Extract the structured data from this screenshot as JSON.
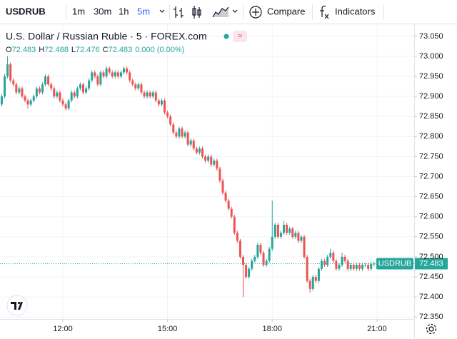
{
  "toolbar": {
    "symbol": "USDRUB",
    "intervals": [
      "1m",
      "30m",
      "1h",
      "5m"
    ],
    "active_interval": 3,
    "compare": "Compare",
    "indicators": "Indicators"
  },
  "legend": {
    "title": "U.S. Dollar / Russian Ruble · 5 · FOREX.com",
    "ohlc": [
      {
        "label": "O",
        "value": "72.483"
      },
      {
        "label": "H",
        "value": "72.488"
      },
      {
        "label": "L",
        "value": "72.476"
      },
      {
        "label": "C",
        "value": "72.483"
      }
    ],
    "change": "0.000 (0.00%)"
  },
  "chart_data": {
    "type": "candlestick",
    "up_color": "#26a69a",
    "down_color": "#ef5350",
    "grid": true,
    "last_price": {
      "label": "USDRUB",
      "value": 72.483
    },
    "xlim": [
      "10:12",
      "22:04"
    ],
    "xticks": [
      "12:00",
      "15:00",
      "18:00",
      "21:00"
    ],
    "ylim": [
      72.345,
      73.08
    ],
    "yticks": [
      {
        "value": 72.35,
        "label": "72.350"
      },
      {
        "value": 72.4,
        "label": "72.400"
      },
      {
        "value": 72.45,
        "label": "72.450"
      },
      {
        "value": 72.5,
        "label": "72.500"
      },
      {
        "value": 72.55,
        "label": "72.550"
      },
      {
        "value": 72.6,
        "label": "72.600"
      },
      {
        "value": 72.65,
        "label": "72.650"
      },
      {
        "value": 72.7,
        "label": "72.700"
      },
      {
        "value": 72.75,
        "label": "72.750"
      },
      {
        "value": 72.8,
        "label": "72.800"
      },
      {
        "value": 72.85,
        "label": "72.850"
      },
      {
        "value": 72.9,
        "label": "72.900"
      },
      {
        "value": 72.95,
        "label": "72.950"
      },
      {
        "value": 73.0,
        "label": "73.000"
      },
      {
        "value": 73.05,
        "label": "73.050"
      }
    ],
    "x": [
      "10:15",
      "10:20",
      "10:25",
      "10:30",
      "10:35",
      "10:40",
      "10:45",
      "10:50",
      "10:55",
      "11:00",
      "11:05",
      "11:10",
      "11:15",
      "11:20",
      "11:25",
      "11:30",
      "11:35",
      "11:40",
      "11:45",
      "11:50",
      "11:55",
      "12:00",
      "12:05",
      "12:10",
      "12:15",
      "12:20",
      "12:25",
      "12:30",
      "12:35",
      "12:40",
      "12:45",
      "12:50",
      "12:55",
      "13:00",
      "13:05",
      "13:10",
      "13:15",
      "13:20",
      "13:25",
      "13:30",
      "13:35",
      "13:40",
      "13:45",
      "13:50",
      "13:55",
      "14:00",
      "14:05",
      "14:10",
      "14:15",
      "14:20",
      "14:25",
      "14:30",
      "14:35",
      "14:40",
      "14:45",
      "14:50",
      "14:55",
      "15:00",
      "15:05",
      "15:10",
      "15:15",
      "15:20",
      "15:25",
      "15:30",
      "15:35",
      "15:40",
      "15:45",
      "15:50",
      "15:55",
      "16:00",
      "16:05",
      "16:10",
      "16:15",
      "16:20",
      "16:25",
      "16:30",
      "16:35",
      "16:40",
      "16:45",
      "16:50",
      "16:55",
      "17:00",
      "17:05",
      "17:10",
      "17:15",
      "17:20",
      "17:25",
      "17:30",
      "17:35",
      "17:40",
      "17:45",
      "17:50",
      "17:55",
      "18:00",
      "18:05",
      "18:10",
      "18:15",
      "18:20",
      "18:25",
      "18:30",
      "18:35",
      "18:40",
      "18:45",
      "18:50",
      "18:55",
      "19:00",
      "19:05",
      "19:10",
      "19:15",
      "19:20",
      "19:25",
      "19:30",
      "19:35",
      "19:40",
      "19:45",
      "19:50",
      "19:55",
      "20:00",
      "20:05",
      "20:10",
      "20:15",
      "20:20",
      "20:25",
      "20:30",
      "20:35",
      "20:40",
      "20:45",
      "20:50",
      "20:55"
    ],
    "open": [
      72.88,
      72.9,
      72.95,
      72.98,
      72.94,
      72.93,
      72.91,
      72.92,
      72.9,
      72.89,
      72.88,
      72.89,
      72.9,
      72.92,
      72.91,
      72.93,
      72.95,
      72.93,
      72.92,
      72.9,
      72.91,
      72.89,
      72.88,
      72.87,
      72.89,
      72.91,
      72.9,
      72.92,
      72.93,
      72.91,
      72.92,
      72.94,
      72.96,
      72.95,
      72.93,
      72.96,
      72.95,
      72.97,
      72.96,
      72.95,
      72.96,
      72.95,
      72.96,
      72.97,
      72.96,
      72.94,
      72.93,
      72.92,
      72.93,
      72.91,
      72.9,
      72.91,
      72.9,
      72.91,
      72.89,
      72.88,
      72.89,
      72.86,
      72.85,
      72.83,
      72.81,
      72.8,
      72.82,
      72.8,
      72.81,
      72.78,
      72.79,
      72.77,
      72.76,
      72.77,
      72.75,
      72.74,
      72.75,
      72.73,
      72.74,
      72.72,
      72.69,
      72.66,
      72.64,
      72.62,
      72.6,
      72.56,
      72.54,
      72.5,
      72.48,
      72.45,
      72.47,
      72.49,
      72.5,
      72.53,
      72.51,
      72.48,
      72.49,
      72.52,
      72.55,
      72.58,
      72.55,
      72.56,
      72.58,
      72.56,
      72.57,
      72.55,
      72.56,
      72.54,
      72.55,
      72.5,
      72.44,
      72.42,
      72.45,
      72.44,
      72.47,
      72.49,
      72.48,
      72.5,
      72.51,
      72.49,
      72.47,
      72.48,
      72.5,
      72.49,
      72.47,
      72.48,
      72.47,
      72.48,
      72.47,
      72.48,
      72.48,
      72.47,
      72.483
    ],
    "high": [
      72.905,
      72.955,
      73.0,
      72.985,
      72.945,
      72.935,
      72.925,
      72.925,
      72.905,
      72.895,
      72.895,
      72.905,
      72.925,
      72.925,
      72.935,
      72.955,
      72.955,
      72.935,
      72.925,
      72.915,
      72.915,
      72.895,
      72.885,
      72.895,
      72.915,
      72.915,
      72.925,
      72.935,
      72.935,
      72.925,
      72.945,
      72.965,
      72.965,
      72.955,
      72.965,
      72.965,
      72.975,
      72.975,
      72.965,
      72.965,
      72.965,
      72.965,
      72.975,
      72.975,
      72.965,
      72.945,
      72.935,
      72.935,
      72.935,
      72.915,
      72.915,
      72.915,
      72.915,
      72.915,
      72.895,
      72.895,
      72.895,
      72.865,
      72.855,
      72.835,
      72.815,
      72.825,
      72.825,
      72.815,
      72.815,
      72.795,
      72.795,
      72.775,
      72.775,
      72.775,
      72.755,
      72.755,
      72.755,
      72.745,
      72.745,
      72.725,
      72.695,
      72.665,
      72.645,
      72.625,
      72.605,
      72.565,
      72.545,
      72.505,
      72.485,
      72.475,
      72.495,
      72.505,
      72.535,
      72.535,
      72.515,
      72.495,
      72.525,
      72.64,
      72.585,
      72.585,
      72.565,
      72.59,
      72.585,
      72.575,
      72.575,
      72.565,
      72.565,
      72.555,
      72.555,
      72.505,
      72.445,
      72.455,
      72.455,
      72.475,
      72.495,
      72.495,
      72.505,
      72.52,
      72.515,
      72.495,
      72.485,
      72.51,
      72.505,
      72.495,
      72.485,
      72.485,
      72.485,
      72.485,
      72.485,
      72.485,
      72.485,
      72.488,
      72.488
    ],
    "low": [
      72.875,
      72.895,
      72.945,
      72.935,
      72.925,
      72.905,
      72.905,
      72.895,
      72.885,
      72.87,
      72.875,
      72.885,
      72.895,
      72.905,
      72.905,
      72.925,
      72.925,
      72.915,
      72.895,
      72.895,
      72.885,
      72.875,
      72.865,
      72.865,
      72.885,
      72.895,
      72.895,
      72.915,
      72.905,
      72.905,
      72.915,
      72.935,
      72.945,
      72.925,
      72.925,
      72.945,
      72.945,
      72.955,
      72.945,
      72.945,
      72.945,
      72.945,
      72.955,
      72.955,
      72.935,
      72.925,
      72.915,
      72.915,
      72.905,
      72.895,
      72.895,
      72.895,
      72.895,
      72.885,
      72.875,
      72.875,
      72.855,
      72.845,
      72.825,
      72.805,
      72.795,
      72.795,
      72.795,
      72.795,
      72.775,
      72.775,
      72.765,
      72.755,
      72.755,
      72.745,
      72.735,
      72.735,
      72.725,
      72.725,
      72.715,
      72.685,
      72.655,
      72.635,
      72.615,
      72.595,
      72.555,
      72.535,
      72.495,
      72.4,
      72.445,
      72.445,
      72.465,
      72.485,
      72.495,
      72.505,
      72.475,
      72.475,
      72.485,
      72.515,
      72.545,
      72.545,
      72.545,
      72.555,
      72.555,
      72.555,
      72.545,
      72.545,
      72.535,
      72.535,
      72.495,
      72.435,
      72.41,
      72.415,
      72.435,
      72.435,
      72.465,
      72.475,
      72.475,
      72.495,
      72.485,
      72.465,
      72.465,
      72.475,
      72.485,
      72.465,
      72.465,
      72.465,
      72.465,
      72.465,
      72.465,
      72.475,
      72.465,
      72.465,
      72.476
    ],
    "close": [
      72.9,
      72.95,
      72.98,
      72.94,
      72.93,
      72.91,
      72.92,
      72.9,
      72.89,
      72.88,
      72.89,
      72.9,
      72.92,
      72.91,
      72.93,
      72.95,
      72.93,
      72.92,
      72.9,
      72.91,
      72.89,
      72.88,
      72.87,
      72.89,
      72.91,
      72.9,
      72.92,
      72.93,
      72.91,
      72.92,
      72.94,
      72.96,
      72.95,
      72.93,
      72.96,
      72.95,
      72.97,
      72.96,
      72.95,
      72.96,
      72.95,
      72.96,
      72.97,
      72.96,
      72.94,
      72.93,
      72.92,
      72.93,
      72.91,
      72.9,
      72.91,
      72.9,
      72.91,
      72.89,
      72.88,
      72.89,
      72.86,
      72.85,
      72.83,
      72.81,
      72.8,
      72.82,
      72.8,
      72.81,
      72.78,
      72.79,
      72.77,
      72.76,
      72.77,
      72.75,
      72.74,
      72.75,
      72.73,
      72.74,
      72.72,
      72.69,
      72.66,
      72.64,
      72.62,
      72.6,
      72.56,
      72.54,
      72.5,
      72.48,
      72.45,
      72.47,
      72.49,
      72.5,
      72.53,
      72.51,
      72.48,
      72.49,
      72.52,
      72.55,
      72.58,
      72.55,
      72.56,
      72.58,
      72.56,
      72.57,
      72.55,
      72.56,
      72.54,
      72.55,
      72.5,
      72.44,
      72.42,
      72.45,
      72.44,
      72.47,
      72.49,
      72.48,
      72.5,
      72.51,
      72.49,
      72.47,
      72.48,
      72.5,
      72.49,
      72.47,
      72.48,
      72.47,
      72.48,
      72.47,
      72.48,
      72.48,
      72.47,
      72.483,
      72.483
    ]
  }
}
